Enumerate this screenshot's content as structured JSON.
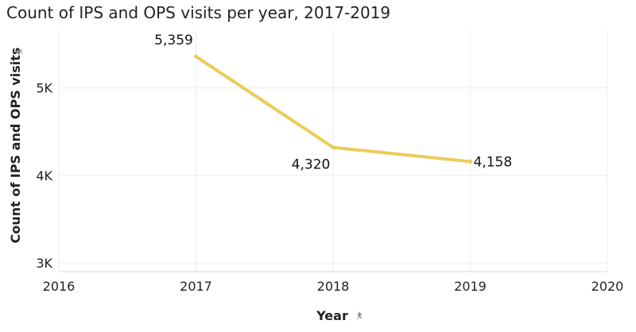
{
  "title": "Count of IPS and OPS visits per year, 2017-2019",
  "chart_data": {
    "type": "line",
    "title": "Count of IPS and OPS visits per year, 2017-2019",
    "xlabel": "Year",
    "ylabel": "Count of IPS and OPS visits",
    "x": [
      2017,
      2018,
      2019
    ],
    "values": [
      5359,
      4320,
      4158
    ],
    "data_labels": [
      "5,359",
      "4,320",
      "4,158"
    ],
    "x_ticks": [
      2016,
      2017,
      2018,
      2019,
      2020
    ],
    "x_tick_labels": [
      "2016",
      "2017",
      "2018",
      "2019",
      "2020"
    ],
    "y_ticks": [
      3000,
      4000,
      5000
    ],
    "y_tick_labels": [
      "3K",
      "4K",
      "5K"
    ],
    "xlim": [
      2016,
      2020
    ],
    "ylim": [
      2900,
      5660
    ],
    "grid": true,
    "line_color": "#ECCB5A"
  }
}
